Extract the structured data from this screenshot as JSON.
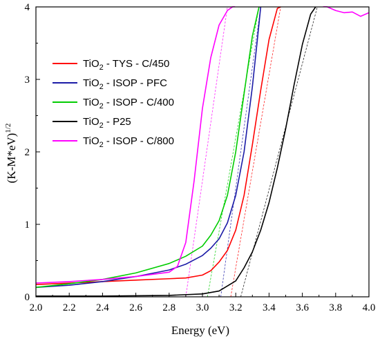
{
  "chart_data": {
    "type": "line",
    "xlabel": "Energy (eV)",
    "ylabel_main": "(K-M*eV)",
    "ylabel_sup": "1/2",
    "xlim": [
      2.0,
      4.0
    ],
    "ylim": [
      0,
      4
    ],
    "x_ticks": [
      "2.0",
      "2.2",
      "2.4",
      "2.6",
      "2.8",
      "3.0",
      "3.2",
      "3.4",
      "3.6",
      "3.8",
      "4.0"
    ],
    "y_ticks": [
      "0",
      "1",
      "2",
      "3",
      "4"
    ],
    "grid": false,
    "legend_position": "upper-left",
    "series": [
      {
        "name": "TiO2 - TYS - C/450",
        "label_prefix": "TiO",
        "label_sub": "2",
        "label_suffix": " - TYS - C/450",
        "color": "#ff0000",
        "x": [
          2.0,
          2.2,
          2.4,
          2.6,
          2.8,
          2.9,
          3.0,
          3.05,
          3.1,
          3.15,
          3.2,
          3.25,
          3.3,
          3.35,
          3.4,
          3.45,
          3.47
        ],
        "y": [
          0.17,
          0.19,
          0.21,
          0.23,
          0.25,
          0.26,
          0.3,
          0.36,
          0.48,
          0.64,
          0.92,
          1.4,
          2.1,
          2.85,
          3.55,
          3.98,
          4.0
        ]
      },
      {
        "name": "TiO2 - ISOP - PFC",
        "label_prefix": "TiO",
        "label_sub": "2",
        "label_suffix": " - ISOP - PFC",
        "color": "#1a1aa6",
        "x": [
          2.0,
          2.2,
          2.4,
          2.6,
          2.8,
          2.9,
          3.0,
          3.05,
          3.1,
          3.15,
          3.2,
          3.25,
          3.3,
          3.33,
          3.35
        ],
        "y": [
          0.13,
          0.16,
          0.21,
          0.28,
          0.37,
          0.45,
          0.57,
          0.67,
          0.8,
          1.02,
          1.4,
          2.0,
          2.9,
          3.55,
          4.0
        ]
      },
      {
        "name": "TiO2 - ISOP - C/400",
        "label_prefix": "TiO",
        "label_sub": "2",
        "label_suffix": " - ISOP - C/400",
        "color": "#00cc00",
        "x": [
          2.0,
          2.2,
          2.4,
          2.6,
          2.8,
          2.9,
          3.0,
          3.05,
          3.1,
          3.15,
          3.2,
          3.25,
          3.3,
          3.34
        ],
        "y": [
          0.13,
          0.18,
          0.24,
          0.33,
          0.46,
          0.56,
          0.7,
          0.85,
          1.05,
          1.4,
          2.0,
          2.8,
          3.6,
          4.0
        ]
      },
      {
        "name": "TiO2 - P25",
        "label_prefix": "TiO",
        "label_sub": "2",
        "label_suffix": " - P25",
        "color": "#000000",
        "x": [
          2.0,
          2.4,
          2.8,
          3.0,
          3.1,
          3.2,
          3.25,
          3.3,
          3.35,
          3.4,
          3.45,
          3.5,
          3.55,
          3.6,
          3.65,
          3.68
        ],
        "y": [
          0.01,
          0.01,
          0.02,
          0.04,
          0.08,
          0.22,
          0.4,
          0.62,
          0.92,
          1.3,
          1.78,
          2.32,
          2.92,
          3.48,
          3.9,
          4.0
        ]
      },
      {
        "name": "TiO2 - ISOP - C/800",
        "label_prefix": "TiO",
        "label_sub": "2",
        "label_suffix": " - ISOP - C/800",
        "color": "#ff00ff",
        "x": [
          2.0,
          2.2,
          2.4,
          2.6,
          2.8,
          2.85,
          2.9,
          2.95,
          3.0,
          3.05,
          3.1,
          3.15,
          3.18,
          3.2,
          3.25,
          3.3,
          3.35,
          3.4,
          3.5,
          3.6,
          3.7,
          3.75,
          3.8,
          3.85,
          3.9,
          3.95,
          4.0
        ],
        "y": [
          0.19,
          0.21,
          0.24,
          0.28,
          0.34,
          0.42,
          0.75,
          1.6,
          2.6,
          3.3,
          3.75,
          3.95,
          4.0,
          4.02,
          4.02,
          4.03,
          4.02,
          4.03,
          4.02,
          4.02,
          4.03,
          4.0,
          3.95,
          3.92,
          3.93,
          3.87,
          3.92
        ]
      }
    ],
    "tangent_lines": [
      {
        "color": "#ff0000",
        "x": [
          3.17,
          3.47
        ],
        "y": [
          0.0,
          4.0
        ]
      },
      {
        "color": "#1a1aa6",
        "x": [
          3.11,
          3.35
        ],
        "y": [
          0.0,
          4.0
        ]
      },
      {
        "color": "#00cc00",
        "x": [
          3.03,
          3.34
        ],
        "y": [
          0.0,
          4.0
        ]
      },
      {
        "color": "#000000",
        "x": [
          3.23,
          3.69
        ],
        "y": [
          0.0,
          4.0
        ]
      },
      {
        "color": "#ff00ff",
        "x": [
          2.9,
          3.15
        ],
        "y": [
          0.0,
          4.0
        ]
      }
    ]
  }
}
